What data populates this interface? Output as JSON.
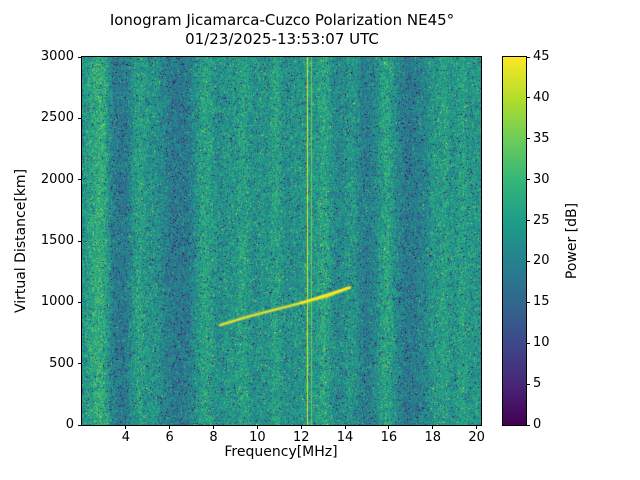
{
  "chart_data": {
    "type": "heatmap",
    "title": "Ionogram Jicamarca-Cuzco Polarization NE45°",
    "subtitle": "01/23/2025-13:53:07 UTC",
    "xlabel": "Frequency[MHz]",
    "ylabel": "Virtual Distance[km]",
    "xlim": [
      2,
      20.2
    ],
    "ylim": [
      0,
      3000
    ],
    "xticks": [
      4,
      6,
      8,
      10,
      12,
      14,
      16,
      18,
      20
    ],
    "yticks": [
      0,
      500,
      1000,
      1500,
      2000,
      2500,
      3000
    ],
    "grid": false,
    "colorbar": {
      "label": "Power [dB]",
      "min": 0,
      "max": 45,
      "ticks": [
        0,
        5,
        10,
        15,
        20,
        25,
        30,
        35,
        40,
        45
      ],
      "colormap": "viridis"
    },
    "noise_background": {
      "mean_db": 21,
      "spread_db": 8,
      "speckle_prob": 0.05
    },
    "interference_bands": [
      {
        "freq_mhz": 2.5,
        "amp_db": 5,
        "width_mhz": 0.35
      },
      {
        "freq_mhz": 2.95,
        "amp_db": 5,
        "width_mhz": 0.25
      },
      {
        "freq_mhz": 3.8,
        "amp_db": -3,
        "width_mhz": 0.4
      },
      {
        "freq_mhz": 4.6,
        "amp_db": 5,
        "width_mhz": 0.3
      },
      {
        "freq_mhz": 5.35,
        "amp_db": 2.5,
        "width_mhz": 0.2
      },
      {
        "freq_mhz": 6.5,
        "amp_db": -3,
        "width_mhz": 0.5
      },
      {
        "freq_mhz": 7.6,
        "amp_db": 5.5,
        "width_mhz": 0.35
      },
      {
        "freq_mhz": 8.75,
        "amp_db": 2.5,
        "width_mhz": 0.3
      },
      {
        "freq_mhz": 9.4,
        "amp_db": 4.5,
        "width_mhz": 0.25
      },
      {
        "freq_mhz": 10.15,
        "amp_db": 2.5,
        "width_mhz": 0.2
      },
      {
        "freq_mhz": 10.85,
        "amp_db": 5,
        "width_mhz": 0.25
      },
      {
        "freq_mhz": 11.6,
        "amp_db": 2,
        "width_mhz": 0.2
      },
      {
        "freq_mhz": 12.3,
        "amp_db": 3.5,
        "width_mhz": 0.3
      },
      {
        "freq_mhz": 13.05,
        "amp_db": 5.5,
        "width_mhz": 0.25
      },
      {
        "freq_mhz": 14.3,
        "amp_db": 3,
        "width_mhz": 0.25
      },
      {
        "freq_mhz": 15.0,
        "amp_db": -2,
        "width_mhz": 0.3
      },
      {
        "freq_mhz": 15.9,
        "amp_db": 5.5,
        "width_mhz": 0.3
      },
      {
        "freq_mhz": 16.9,
        "amp_db": -2.5,
        "width_mhz": 0.4
      },
      {
        "freq_mhz": 18.0,
        "amp_db": 2.5,
        "width_mhz": 0.2
      },
      {
        "freq_mhz": 18.55,
        "amp_db": 4.5,
        "width_mhz": 0.25
      },
      {
        "freq_mhz": 19.35,
        "amp_db": 4.5,
        "width_mhz": 0.25
      },
      {
        "freq_mhz": 20.0,
        "amp_db": 3,
        "width_mhz": 0.2
      }
    ],
    "rfi_lines": [
      {
        "freq_mhz": 12.28,
        "power_db": 44,
        "width_mhz": 0.06
      },
      {
        "freq_mhz": 12.46,
        "power_db": 36,
        "width_mhz": 0.03
      }
    ],
    "echo_trace": {
      "description": "oblique ionospheric echo",
      "power_db": 45,
      "points": [
        {
          "freq_mhz": 8.3,
          "range_km": 815
        },
        {
          "freq_mhz": 9.5,
          "range_km": 880
        },
        {
          "freq_mhz": 10.8,
          "range_km": 940
        },
        {
          "freq_mhz": 12.0,
          "range_km": 995
        },
        {
          "freq_mhz": 13.2,
          "range_km": 1050
        },
        {
          "freq_mhz": 14.2,
          "range_km": 1120
        }
      ]
    }
  }
}
